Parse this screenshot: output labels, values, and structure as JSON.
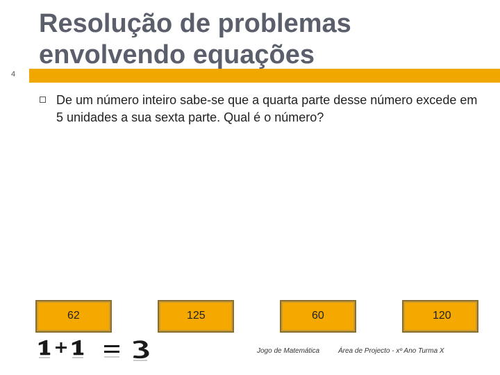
{
  "slide": {
    "number": "4",
    "title": "Resolução de problemas envolvendo equações",
    "question": "De um número inteiro sabe-se que a quarta parte desse número excede em 5 unidades a sua sexta parte. Qual é o número?"
  },
  "answers": [
    "62",
    "125",
    "60",
    "120"
  ],
  "footer": {
    "left": "Jogo de Matemática",
    "right": "Área de Projecto - xº Ano  Turma X"
  },
  "logo": {
    "text": "1+1=3",
    "icon": "math-equation-logo"
  },
  "colors": {
    "accent": "#f0a800",
    "answer_fill": "#f5a800",
    "title": "#5a5f6b"
  }
}
